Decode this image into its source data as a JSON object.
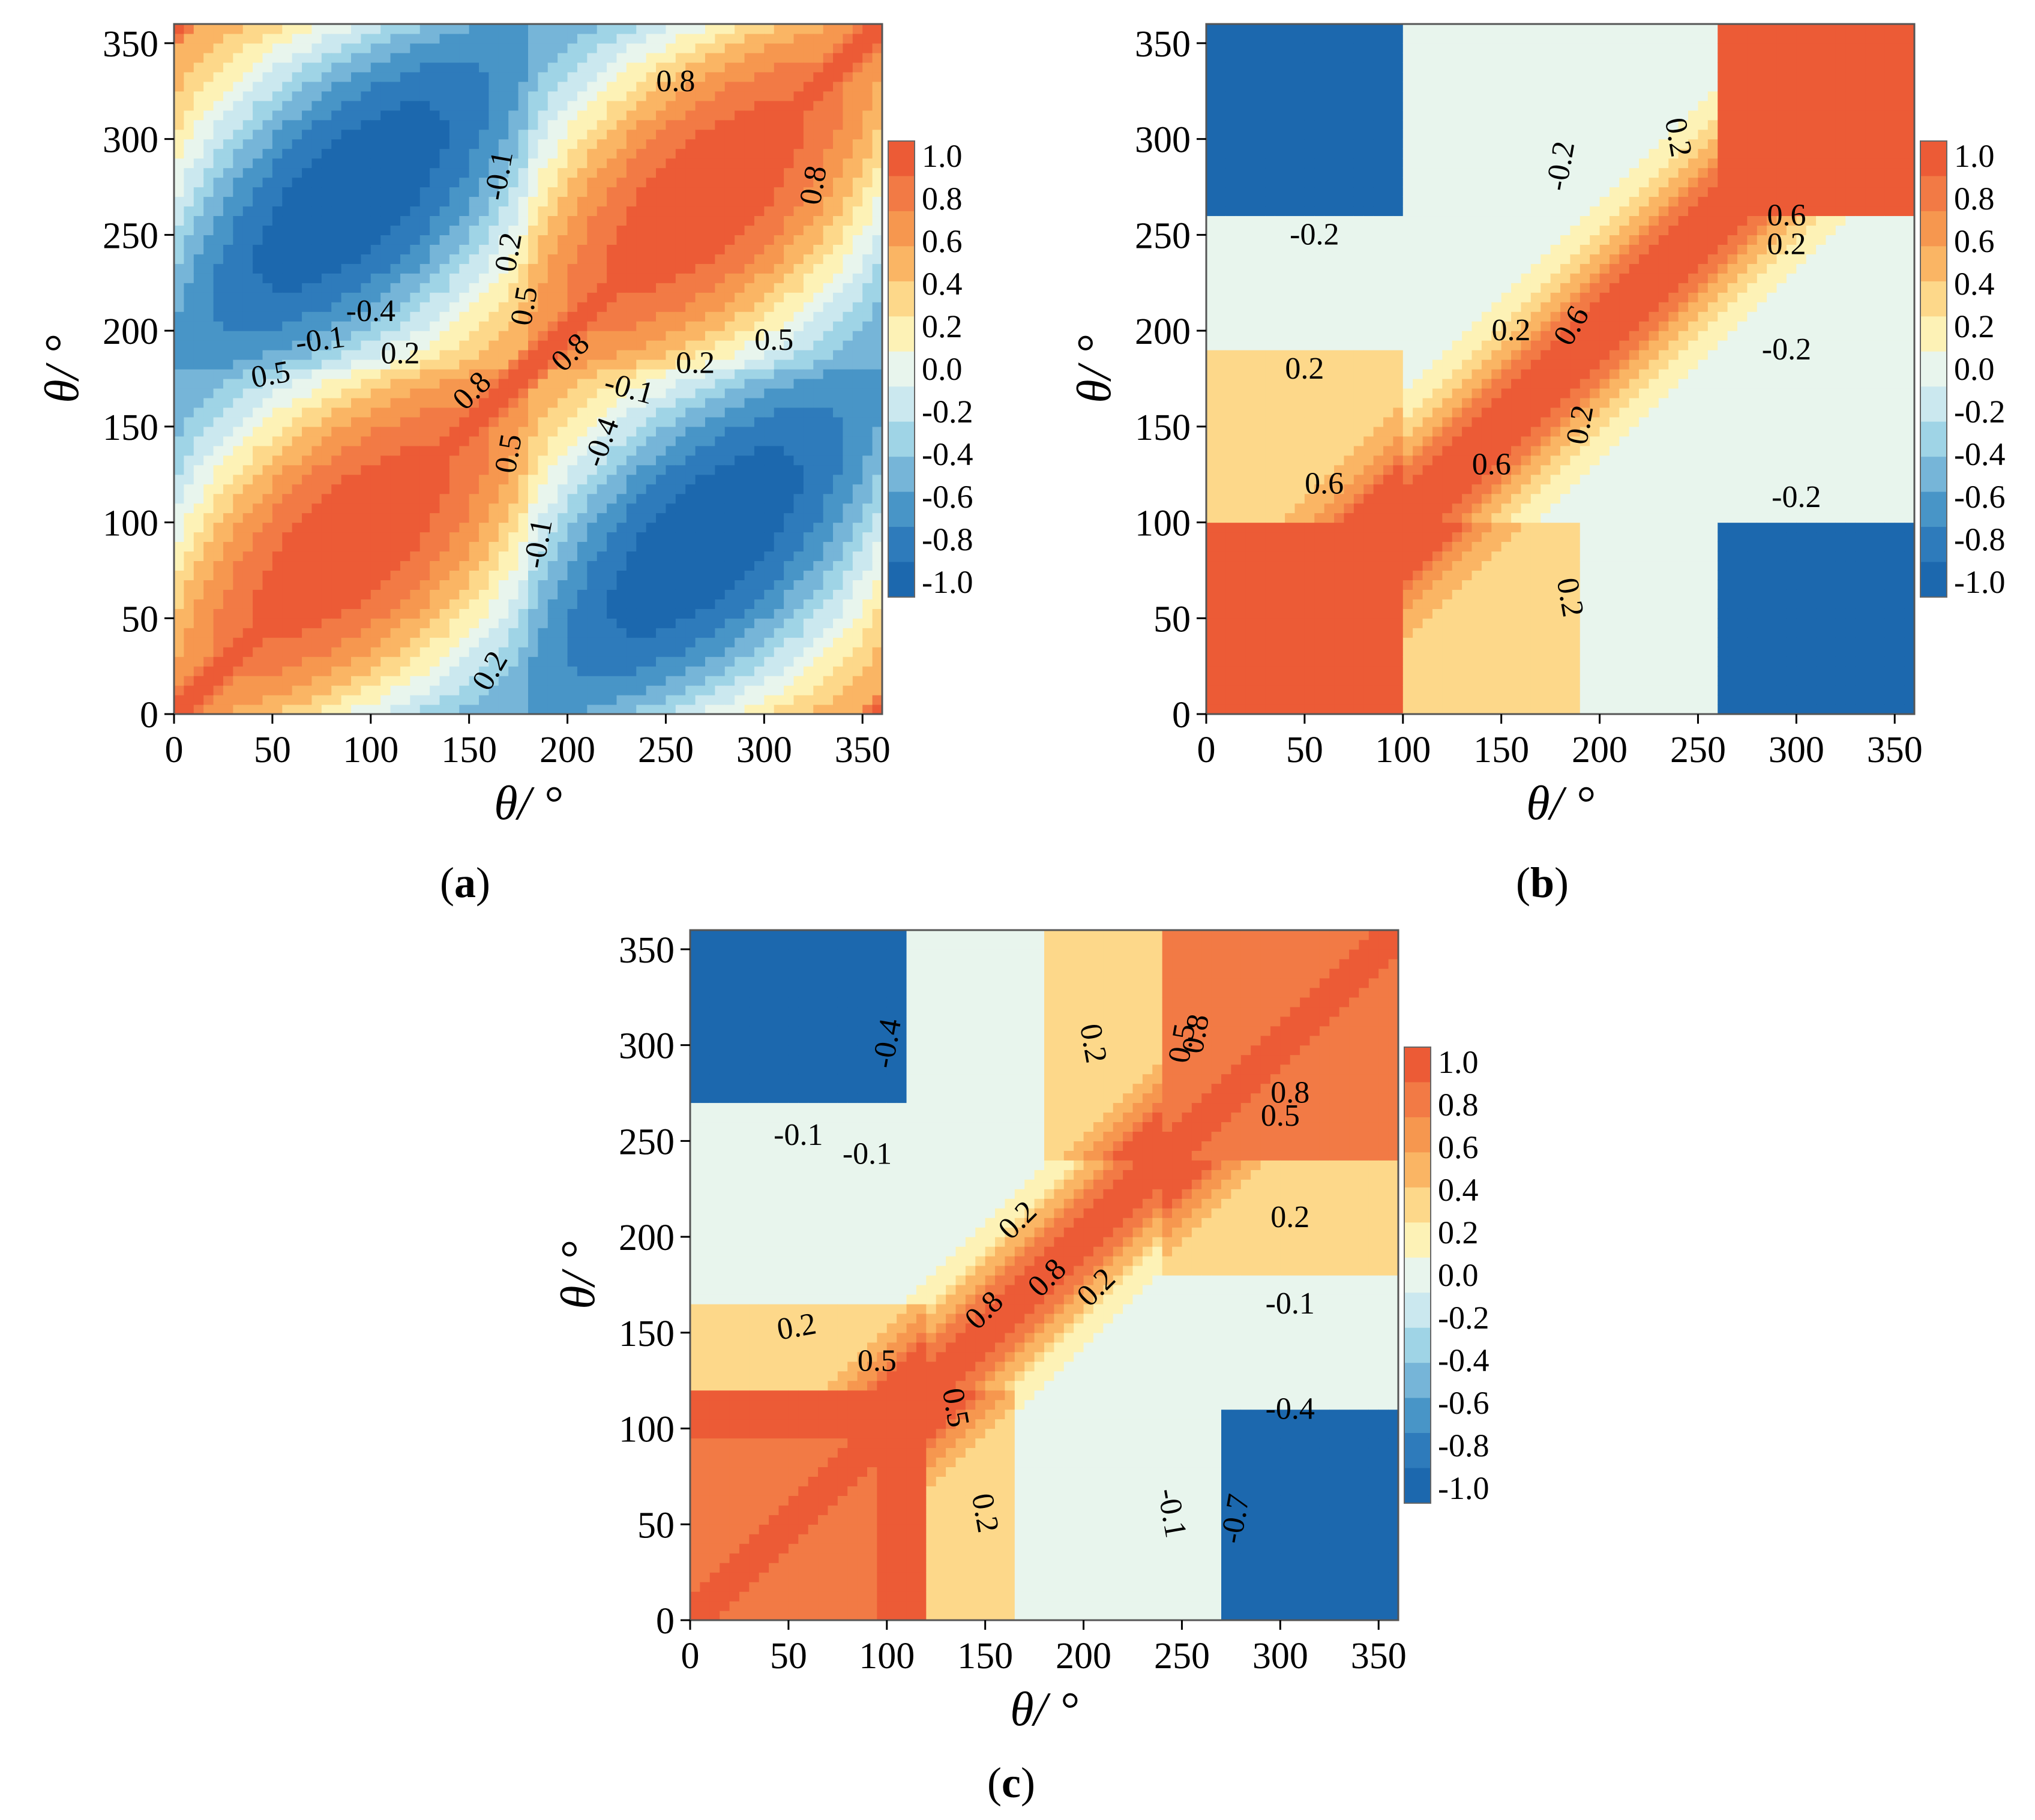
{
  "colorbar": {
    "ticks": [
      "1.0",
      "0.8",
      "0.6",
      "0.4",
      "0.2",
      "0.0",
      "-0.2",
      "-0.4",
      "-0.6",
      "-0.8",
      "-1.0"
    ],
    "colors": [
      "#ec5b36",
      "#f27a45",
      "#f6974f",
      "#fab564",
      "#fdd88a",
      "#fdf2b6",
      "#e8f5ed",
      "#cbe8ef",
      "#9fd4e6",
      "#76b5d8",
      "#4895c7",
      "#2e7bbb",
      "#1c68ae"
    ]
  },
  "chart_data": [
    {
      "type": "heatmap",
      "panel": "a",
      "caption": "a",
      "xlabel": "θ/ °",
      "ylabel": "θ/ °",
      "xlim": [
        0,
        360
      ],
      "ylim": [
        0,
        360
      ],
      "xticks": [
        "0",
        "50",
        "100",
        "150",
        "200",
        "250",
        "300",
        "350"
      ],
      "yticks": [
        "0",
        "50",
        "100",
        "150",
        "200",
        "250",
        "300",
        "350"
      ],
      "colorbar_range": [
        -1.0,
        1.0
      ],
      "contour_labels": [
        {
          "text": "0.8",
          "x": 255,
          "y": 325,
          "angle": 0
        },
        {
          "text": "-0.1",
          "x": 170,
          "y": 280,
          "angle": -80
        },
        {
          "text": "0.8",
          "x": 330,
          "y": 275,
          "angle": -80
        },
        {
          "text": "0.2",
          "x": 175,
          "y": 240,
          "angle": -80
        },
        {
          "text": "0.5",
          "x": 183,
          "y": 212,
          "angle": -80
        },
        {
          "text": "-0.4",
          "x": 100,
          "y": 205,
          "angle": 0
        },
        {
          "text": "-0.1",
          "x": 75,
          "y": 190,
          "angle": -8
        },
        {
          "text": "0.2",
          "x": 115,
          "y": 183,
          "angle": 0
        },
        {
          "text": "0.5",
          "x": 50,
          "y": 172,
          "angle": -10
        },
        {
          "text": "0.8",
          "x": 205,
          "y": 185,
          "angle": -45
        },
        {
          "text": "0.8",
          "x": 155,
          "y": 165,
          "angle": -45
        },
        {
          "text": "0.2",
          "x": 265,
          "y": 178,
          "angle": 0
        },
        {
          "text": "0.5",
          "x": 305,
          "y": 190,
          "angle": 0
        },
        {
          "text": "-0.1",
          "x": 230,
          "y": 165,
          "angle": 15
        },
        {
          "text": "-0.4",
          "x": 222,
          "y": 140,
          "angle": -70
        },
        {
          "text": "0.5",
          "x": 175,
          "y": 135,
          "angle": -80
        },
        {
          "text": "-0.1",
          "x": 190,
          "y": 88,
          "angle": -80
        },
        {
          "text": "0.2",
          "x": 165,
          "y": 20,
          "angle": -60
        }
      ]
    },
    {
      "type": "heatmap",
      "panel": "b",
      "caption": "b",
      "xlabel": "θ/ °",
      "ylabel": "θ/ °",
      "xlim": [
        0,
        360
      ],
      "ylim": [
        0,
        360
      ],
      "xticks": [
        "0",
        "50",
        "100",
        "150",
        "200",
        "250",
        "300",
        "350"
      ],
      "yticks": [
        "0",
        "50",
        "100",
        "150",
        "200",
        "250",
        "300",
        "350"
      ],
      "colorbar_range": [
        -1.0,
        1.0
      ],
      "contour_labels": [
        {
          "text": "-0.2",
          "x": 185,
          "y": 285,
          "angle": -80
        },
        {
          "text": "0.2",
          "x": 235,
          "y": 300,
          "angle": 80
        },
        {
          "text": "-0.2",
          "x": 55,
          "y": 245,
          "angle": 0
        },
        {
          "text": "0.6",
          "x": 295,
          "y": 255,
          "angle": 0
        },
        {
          "text": "0.2",
          "x": 295,
          "y": 240,
          "angle": 0
        },
        {
          "text": "0.6",
          "x": 190,
          "y": 200,
          "angle": -60
        },
        {
          "text": "0.2",
          "x": 155,
          "y": 195,
          "angle": 0
        },
        {
          "text": "-0.2",
          "x": 295,
          "y": 185,
          "angle": 0
        },
        {
          "text": "0.2",
          "x": 50,
          "y": 175,
          "angle": 0
        },
        {
          "text": "0.2",
          "x": 195,
          "y": 150,
          "angle": -80
        },
        {
          "text": "0.6",
          "x": 60,
          "y": 115,
          "angle": 0
        },
        {
          "text": "0.6",
          "x": 145,
          "y": 125,
          "angle": 0
        },
        {
          "text": "-0.2",
          "x": 300,
          "y": 108,
          "angle": 0
        },
        {
          "text": "0.2",
          "x": 180,
          "y": 60,
          "angle": 80
        }
      ]
    },
    {
      "type": "heatmap",
      "panel": "c",
      "caption": "c",
      "xlabel": "θ/ °",
      "ylabel": "θ/ °",
      "xlim": [
        0,
        360
      ],
      "ylim": [
        0,
        360
      ],
      "xticks": [
        "0",
        "50",
        "100",
        "150",
        "200",
        "250",
        "300",
        "350"
      ],
      "yticks": [
        "0",
        "50",
        "100",
        "150",
        "200",
        "250",
        "300",
        "350"
      ],
      "colorbar_range": [
        -1.0,
        1.0
      ],
      "contour_labels": [
        {
          "text": "-0.4",
          "x": 105,
          "y": 300,
          "angle": -80
        },
        {
          "text": "0.2",
          "x": 200,
          "y": 300,
          "angle": 80
        },
        {
          "text": "0.5",
          "x": 255,
          "y": 300,
          "angle": -80
        },
        {
          "text": "0.8",
          "x": 262,
          "y": 305,
          "angle": -80
        },
        {
          "text": "0.8",
          "x": 305,
          "y": 270,
          "angle": 0
        },
        {
          "text": "0.5",
          "x": 300,
          "y": 258,
          "angle": 0
        },
        {
          "text": "-0.1",
          "x": 55,
          "y": 248,
          "angle": 0
        },
        {
          "text": "-0.1",
          "x": 90,
          "y": 238,
          "angle": 0
        },
        {
          "text": "0.2",
          "x": 170,
          "y": 205,
          "angle": -45
        },
        {
          "text": "0.2",
          "x": 305,
          "y": 205,
          "angle": 0
        },
        {
          "text": "0.8",
          "x": 185,
          "y": 175,
          "angle": -45
        },
        {
          "text": "0.8",
          "x": 153,
          "y": 158,
          "angle": -45
        },
        {
          "text": "0.2",
          "x": 210,
          "y": 170,
          "angle": -45
        },
        {
          "text": "-0.1",
          "x": 305,
          "y": 160,
          "angle": 0
        },
        {
          "text": "0.2",
          "x": 55,
          "y": 148,
          "angle": -10
        },
        {
          "text": "0.5",
          "x": 95,
          "y": 130,
          "angle": 0
        },
        {
          "text": "0.5",
          "x": 130,
          "y": 110,
          "angle": 80
        },
        {
          "text": "-0.4",
          "x": 305,
          "y": 105,
          "angle": 0
        },
        {
          "text": "-0.1",
          "x": 240,
          "y": 55,
          "angle": 80
        },
        {
          "text": "-0.7",
          "x": 282,
          "y": 52,
          "angle": -80
        },
        {
          "text": "0.2",
          "x": 145,
          "y": 55,
          "angle": 80
        }
      ]
    }
  ]
}
